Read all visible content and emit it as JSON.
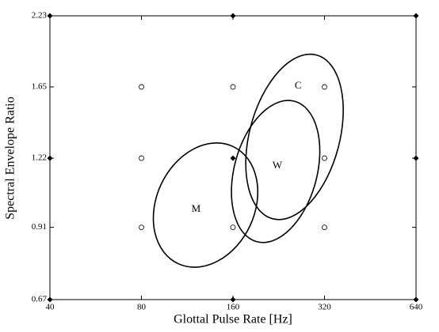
{
  "chart_data": {
    "type": "scatter",
    "xlabel": "Glottal Pulse Rate [Hz]",
    "ylabel": "Spectral Envelope Ratio",
    "xscale": "log",
    "yscale": "log",
    "xlim": [
      40,
      640
    ],
    "ylim": [
      0.67,
      2.23
    ],
    "xticks": [
      40,
      80,
      160,
      320,
      640
    ],
    "yticks": [
      0.67,
      0.91,
      1.22,
      1.65,
      2.23
    ],
    "series": [
      {
        "marker": "o",
        "color": "#000000",
        "x": [
          80,
          160,
          320,
          80,
          320,
          80,
          160,
          320
        ],
        "values": [
          1.65,
          1.65,
          1.65,
          1.22,
          1.22,
          0.91,
          0.91,
          0.91
        ]
      },
      {
        "marker": "D",
        "color": "#000000",
        "x": [
          40,
          160,
          640,
          40,
          160,
          640,
          40,
          160,
          640
        ],
        "values": [
          2.23,
          2.23,
          2.23,
          1.22,
          1.22,
          1.22,
          0.67,
          0.67,
          0.67
        ]
      }
    ],
    "ellipses": [
      {
        "label": "M",
        "cx": 130,
        "cy": 1.0,
        "rx": 0.177,
        "ry": 0.134,
        "angle": -65,
        "label_x": 121,
        "label_y": 0.982
      },
      {
        "label": "W",
        "cx": 221,
        "cy": 1.153,
        "rx": 0.199,
        "ry": 0.113,
        "angle": -75,
        "label_x": 224,
        "label_y": 1.18
      },
      {
        "label": "C",
        "cx": 255,
        "cy": 1.335,
        "rx": 0.232,
        "ry": 0.123,
        "angle": -75,
        "label_x": 262,
        "label_y": 1.655
      }
    ]
  }
}
